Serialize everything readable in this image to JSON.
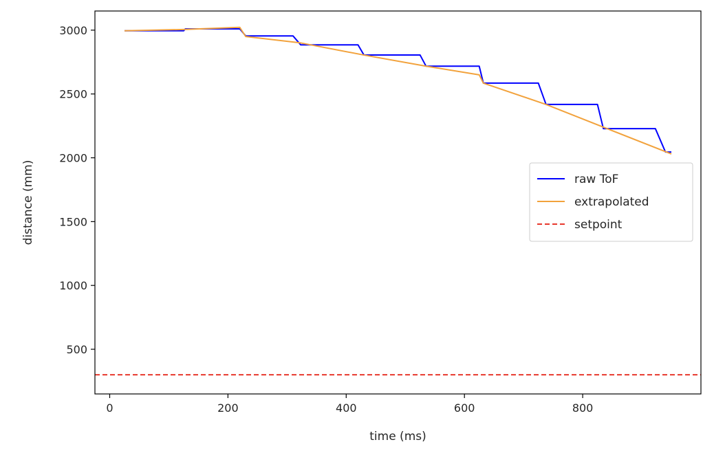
{
  "chart_data": {
    "type": "line",
    "xlabel": "time (ms)",
    "ylabel": "distance (mm)",
    "xlim": [
      -25,
      1000
    ],
    "ylim": [
      150,
      3150
    ],
    "xticks": [
      0,
      200,
      400,
      600,
      800
    ],
    "yticks": [
      500,
      1000,
      1500,
      2000,
      2500,
      3000
    ],
    "grid": false,
    "legend_position": "center-right",
    "series": [
      {
        "name": "raw ToF",
        "color": "#0000ff",
        "dash": "solid",
        "x": [
          25,
          125,
          128,
          220,
          230,
          310,
          323,
          420,
          430,
          525,
          535,
          625,
          632,
          725,
          738,
          825,
          835,
          923,
          940,
          950
        ],
        "y": [
          2995,
          2995,
          3010,
          3010,
          2955,
          2955,
          2885,
          2885,
          2805,
          2805,
          2718,
          2718,
          2585,
          2585,
          2418,
          2418,
          2228,
          2228,
          2045,
          2045
        ]
      },
      {
        "name": "extrapolated",
        "color": "#f2a23c",
        "dash": "solid",
        "x": [
          25,
          125,
          220,
          230,
          323,
          430,
          535,
          625,
          632,
          738,
          835,
          950
        ],
        "y": [
          2995,
          3005,
          3022,
          2950,
          2900,
          2805,
          2718,
          2650,
          2585,
          2418,
          2240,
          2030
        ]
      },
      {
        "name": "setpoint",
        "color": "#e8372c",
        "dash": "dashed",
        "x": [
          -25,
          1000
        ],
        "y": [
          300,
          300
        ]
      }
    ]
  }
}
